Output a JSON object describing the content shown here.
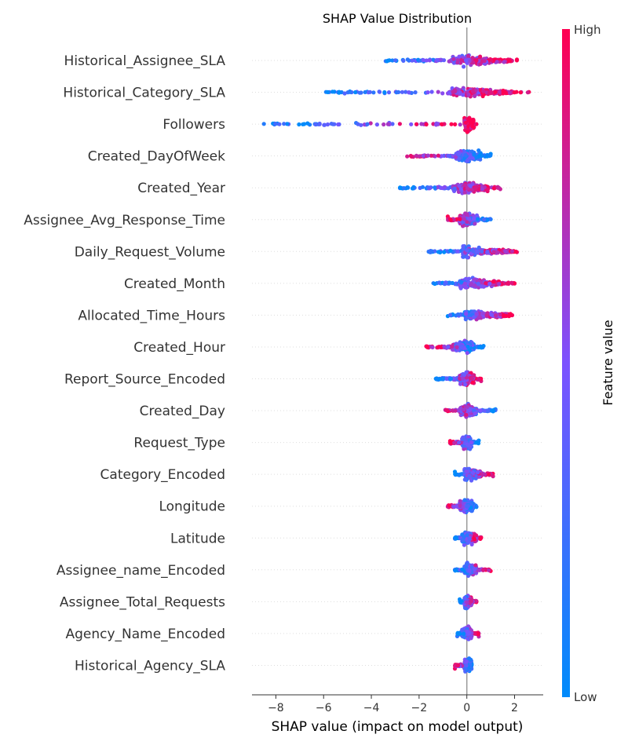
{
  "chart_data": {
    "type": "scatter",
    "title": "SHAP Value Distribution",
    "xlabel": "SHAP value (impact on model output)",
    "xlim": [
      -9.0,
      3.2
    ],
    "xticks": [
      -8,
      -6,
      -4,
      -2,
      0,
      2
    ],
    "xtick_labels": [
      "−8",
      "−6",
      "−4",
      "−2",
      "0",
      "2"
    ],
    "colorbar": {
      "label": "Feature value",
      "high_label": "High",
      "low_label": "Low",
      "low_color": "#008bfb",
      "mid_color": "#7c52ff",
      "high_color": "#ff0051"
    },
    "features": [
      {
        "name": "Historical_Assignee_SLA",
        "min": -3.4,
        "max": 2.1,
        "bulk": [
          -0.6,
          1.9
        ],
        "low_side": "left"
      },
      {
        "name": "Historical_Category_SLA",
        "min": -5.9,
        "max": 2.6,
        "bulk": [
          -0.8,
          1.9
        ],
        "low_side": "left"
      },
      {
        "name": "Followers",
        "min": -8.5,
        "max": 0.4,
        "bulk": [
          -0.1,
          0.3
        ],
        "low_side": "left"
      },
      {
        "name": "Created_DayOfWeek",
        "min": -2.5,
        "max": 1.0,
        "bulk": [
          -0.5,
          0.6
        ],
        "low_side": "right"
      },
      {
        "name": "Created_Year",
        "min": -2.8,
        "max": 1.4,
        "bulk": [
          -0.6,
          0.9
        ],
        "low_side": "left"
      },
      {
        "name": "Assignee_Avg_Response_Time",
        "min": -0.8,
        "max": 1.0,
        "bulk": [
          -0.3,
          0.5
        ],
        "low_side": "right"
      },
      {
        "name": "Daily_Request_Volume",
        "min": -1.6,
        "max": 2.1,
        "bulk": [
          -0.2,
          1.9
        ],
        "low_side": "left"
      },
      {
        "name": "Created_Month",
        "min": -1.4,
        "max": 2.0,
        "bulk": [
          -0.3,
          1.6
        ],
        "low_side": "left"
      },
      {
        "name": "Allocated_Time_Hours",
        "min": -0.8,
        "max": 1.9,
        "bulk": [
          -0.1,
          1.8
        ],
        "low_side": "left"
      },
      {
        "name": "Created_Hour",
        "min": -1.7,
        "max": 0.7,
        "bulk": [
          -0.6,
          0.3
        ],
        "low_side": "right"
      },
      {
        "name": "Report_Source_Encoded",
        "min": -1.3,
        "max": 0.6,
        "bulk": [
          -0.3,
          0.3
        ],
        "low_side": "left"
      },
      {
        "name": "Created_Day",
        "min": -0.9,
        "max": 1.2,
        "bulk": [
          -0.3,
          0.4
        ],
        "low_side": "right"
      },
      {
        "name": "Request_Type",
        "min": -0.7,
        "max": 0.5,
        "bulk": [
          -0.2,
          0.2
        ],
        "low_side": "right"
      },
      {
        "name": "Category_Encoded",
        "min": -0.5,
        "max": 1.1,
        "bulk": [
          -0.1,
          0.6
        ],
        "low_side": "left"
      },
      {
        "name": "Longitude",
        "min": -0.8,
        "max": 0.4,
        "bulk": [
          -0.3,
          0.3
        ],
        "low_side": "right"
      },
      {
        "name": "Latitude",
        "min": -0.5,
        "max": 0.6,
        "bulk": [
          -0.2,
          0.4
        ],
        "low_side": "left"
      },
      {
        "name": "Assignee_name_Encoded",
        "min": -0.5,
        "max": 1.0,
        "bulk": [
          -0.1,
          0.4
        ],
        "low_side": "left"
      },
      {
        "name": "Assignee_Total_Requests",
        "min": -0.3,
        "max": 0.4,
        "bulk": [
          -0.1,
          0.2
        ],
        "low_side": "left"
      },
      {
        "name": "Agency_Name_Encoded",
        "min": -0.4,
        "max": 0.5,
        "bulk": [
          -0.2,
          0.2
        ],
        "low_side": "left"
      },
      {
        "name": "Historical_Agency_SLA",
        "min": -0.5,
        "max": 0.2,
        "bulk": [
          -0.1,
          0.2
        ],
        "low_side": "right"
      }
    ]
  }
}
